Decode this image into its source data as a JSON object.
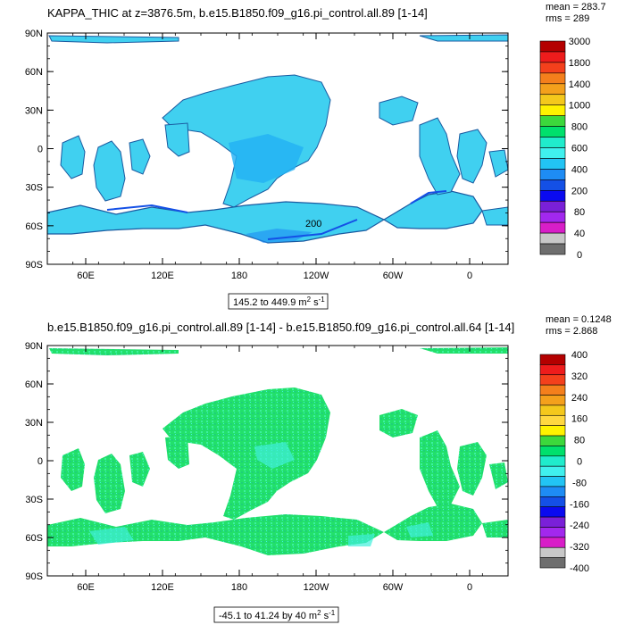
{
  "panels": [
    {
      "title": "KAPPA_THIC at z=3876.5m, b.e15.B1850.f09_g16.pi_control.all.89 [1-14]",
      "mean": "mean = 283.7",
      "rms": "rms = 289",
      "range_note": "145.2 to 449.9 m",
      "range_unit": "2",
      "range_tail": " s",
      "range_exp": "-1",
      "contour_label": "200",
      "colorbar_labels": [
        "3000",
        "1800",
        "1400",
        "1000",
        "800",
        "600",
        "400",
        "200",
        "80",
        "40",
        "0"
      ],
      "colorbar_colors": [
        "#b40000",
        "#ee1c1c",
        "#f4401c",
        "#f47f1c",
        "#f4a01c",
        "#f4c81c",
        "#fff200",
        "#3cd83c",
        "#00e06c",
        "#20eccc",
        "#40f0ee",
        "#22c4f4",
        "#1e8cf4",
        "#1450e6",
        "#0a0af0",
        "#7a20d8",
        "#a228ee",
        "#d81ec8",
        "#c8c8c8",
        "#6e6e6e"
      ],
      "land_color": "#ffffff",
      "ocean_color": "#40d0f0"
    },
    {
      "title": "b.e15.B1850.f09_g16.pi_control.all.89 [1-14] - b.e15.B1850.f09_g16.pi_control.all.64 [1-14]",
      "mean": "mean = 0.1248",
      "rms": "rms = 2.868",
      "range_note": "-45.1 to 41.24 by 40 m",
      "range_unit": "2",
      "range_tail": " s",
      "range_exp": "-1",
      "colorbar_labels": [
        "400",
        "320",
        "240",
        "160",
        "80",
        "0",
        "-80",
        "-160",
        "-240",
        "-320",
        "-400"
      ],
      "colorbar_colors": [
        "#b40000",
        "#ee1c1c",
        "#f4401c",
        "#f47f1c",
        "#f4a01c",
        "#f4c81c",
        "#ffd840",
        "#fff200",
        "#3cd83c",
        "#00e06c",
        "#20eccc",
        "#40f0ee",
        "#22c4f4",
        "#1e8cf4",
        "#1450e6",
        "#0a0af0",
        "#7a20d8",
        "#a228ee",
        "#d81ec8",
        "#c8c8c8",
        "#6e6e6e"
      ],
      "field_color": "#22e06a"
    }
  ],
  "axes": {
    "lat_labels": [
      "90N",
      "60N",
      "30N",
      "0",
      "30S",
      "60S",
      "90S"
    ],
    "lon_labels": [
      "60E",
      "120E",
      "180",
      "120W",
      "60W",
      "0"
    ]
  }
}
